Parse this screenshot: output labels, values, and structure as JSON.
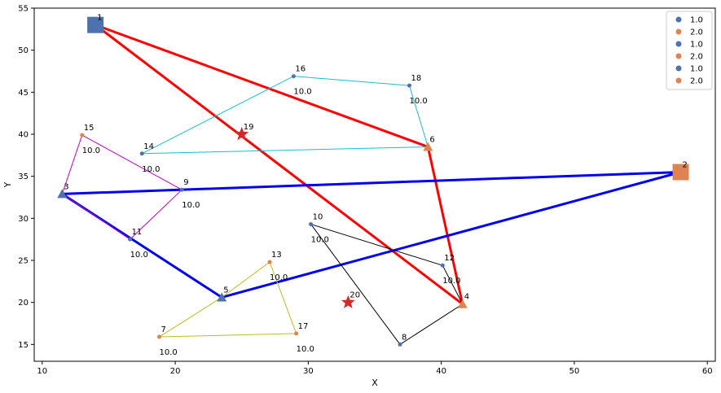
{
  "chart_data": {
    "type": "scatter",
    "xlabel": "X",
    "ylabel": "Y",
    "xlim": [
      9.4,
      60.6
    ],
    "ylim": [
      13.0,
      55.0
    ],
    "xticks": [
      10,
      20,
      30,
      40,
      50,
      60
    ],
    "yticks": [
      15,
      20,
      25,
      30,
      35,
      40,
      45,
      50,
      55
    ],
    "legend": {
      "placement": "top-right",
      "entries": [
        {
          "label": "1.0",
          "color": "#4c72b0"
        },
        {
          "label": "2.0",
          "color": "#dd8452"
        },
        {
          "label": "1.0",
          "color": "#4c72b0"
        },
        {
          "label": "2.0",
          "color": "#dd8452"
        },
        {
          "label": "1.0",
          "color": "#4c72b0"
        },
        {
          "label": "2.0",
          "color": "#dd8452"
        }
      ]
    },
    "nodes": [
      {
        "id": "1",
        "x": 14.0,
        "y": 53.0,
        "marker": "square",
        "color": "#4c72b0"
      },
      {
        "id": "2",
        "x": 58.0,
        "y": 35.5,
        "marker": "square",
        "color": "#dd8452"
      },
      {
        "id": "3",
        "x": 11.5,
        "y": 32.9,
        "marker": "triangle",
        "color": "#4c72b0"
      },
      {
        "id": "4",
        "x": 41.6,
        "y": 19.8,
        "marker": "triangle",
        "color": "#dd8452"
      },
      {
        "id": "5",
        "x": 23.5,
        "y": 20.6,
        "marker": "triangle",
        "color": "#4c72b0"
      },
      {
        "id": "6",
        "x": 39.0,
        "y": 38.5,
        "marker": "triangle",
        "color": "#dd8452"
      },
      {
        "id": "7",
        "x": 18.8,
        "y": 15.9,
        "marker": "dot",
        "color": "#dd8452"
      },
      {
        "id": "8",
        "x": 36.9,
        "y": 15.0,
        "marker": "dot",
        "color": "#4c72b0"
      },
      {
        "id": "9",
        "x": 20.5,
        "y": 33.4,
        "marker": "dot",
        "color": "#4c72b0"
      },
      {
        "id": "10",
        "x": 30.2,
        "y": 29.3,
        "marker": "dot",
        "color": "#4c72b0"
      },
      {
        "id": "11",
        "x": 16.6,
        "y": 27.5,
        "marker": "dot",
        "color": "#4c72b0"
      },
      {
        "id": "12",
        "x": 40.1,
        "y": 24.4,
        "marker": "dot",
        "color": "#4c72b0"
      },
      {
        "id": "13",
        "x": 27.1,
        "y": 24.8,
        "marker": "dot",
        "color": "#dd8452"
      },
      {
        "id": "14",
        "x": 17.5,
        "y": 37.7,
        "marker": "dot",
        "color": "#4c72b0"
      },
      {
        "id": "15",
        "x": 13.0,
        "y": 39.9,
        "marker": "dot",
        "color": "#dd8452"
      },
      {
        "id": "16",
        "x": 28.9,
        "y": 46.9,
        "marker": "dot",
        "color": "#4c72b0"
      },
      {
        "id": "17",
        "x": 29.1,
        "y": 16.3,
        "marker": "dot",
        "color": "#dd8452"
      },
      {
        "id": "18",
        "x": 37.6,
        "y": 45.8,
        "marker": "dot",
        "color": "#4c72b0"
      },
      {
        "id": "19",
        "x": 25.0,
        "y": 40.0,
        "marker": "star",
        "color": "#d62728"
      },
      {
        "id": "20",
        "x": 33.0,
        "y": 20.0,
        "marker": "star",
        "color": "#d62728"
      }
    ],
    "routes": [
      {
        "color": "#ff0000",
        "width": 3,
        "path": [
          "1",
          "6",
          "4",
          "1"
        ]
      },
      {
        "color": "#0000ee",
        "width": 3,
        "path": [
          "3",
          "2",
          "5",
          "3"
        ]
      },
      {
        "color": "#17becf",
        "width": 1,
        "path": [
          "14",
          "16",
          "18",
          "6",
          "14"
        ],
        "labels": [
          "10.0",
          "10.0",
          "10.0"
        ]
      },
      {
        "color": "#bf00bf",
        "width": 1,
        "path": [
          "3",
          "15",
          "9",
          "11",
          "3"
        ],
        "labels": [
          "10.0",
          "10.0",
          "10.0"
        ]
      },
      {
        "color": "#bcbd22",
        "width": 1,
        "path": [
          "5",
          "13",
          "17",
          "7",
          "5"
        ],
        "labels": [
          "10.0",
          "10.0",
          "10.0"
        ]
      },
      {
        "color": "#000000",
        "width": 1,
        "path": [
          "10",
          "12",
          "4",
          "8",
          "10"
        ],
        "labels": [
          "10.0",
          "10.0",
          "10.0"
        ]
      }
    ],
    "edge_labels": [
      {
        "node": "16",
        "text": "10.0"
      },
      {
        "node": "18",
        "text": "10.0"
      },
      {
        "node": "14",
        "text": "10.0"
      },
      {
        "node": "15",
        "text": "10.0"
      },
      {
        "node": "9",
        "text": "10.0"
      },
      {
        "node": "11",
        "text": "10.0"
      },
      {
        "node": "10",
        "text": "10.0"
      },
      {
        "node": "12",
        "text": "10.0"
      },
      {
        "node": "13",
        "text": "10.0"
      },
      {
        "node": "7",
        "text": "10.0"
      },
      {
        "node": "17",
        "text": "10.0"
      }
    ]
  }
}
